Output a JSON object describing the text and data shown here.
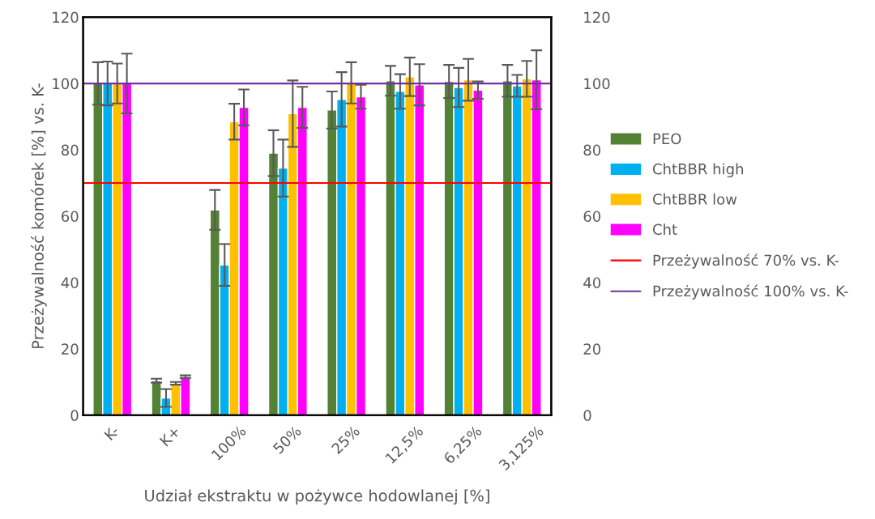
{
  "chart_data": {
    "type": "bar",
    "xlabel": "Udział ekstraktu w pożywce hodowlanej [%]",
    "ylabel": "Przeżywalność komórek [%] vs. K-",
    "categories": [
      "K-",
      "K+",
      "100%",
      "50%",
      "25%",
      "12,5%",
      "6,25%",
      "3,125%"
    ],
    "series": [
      {
        "name": "PEO",
        "color": "#548235",
        "values": [
          100,
          10.4,
          61.9,
          79,
          92,
          100.8,
          100.6,
          100.8
        ],
        "errors": [
          6.4,
          0.6,
          6,
          6.9,
          5.6,
          4.5,
          5,
          4.8
        ]
      },
      {
        "name": "ChtBBR high",
        "color": "#00b0f0",
        "values": [
          100,
          5.2,
          45.3,
          74.5,
          95.2,
          97.6,
          98.8,
          99.3
        ],
        "errors": [
          6.6,
          2.7,
          6.3,
          8.6,
          8.2,
          5.2,
          5.9,
          3.3
        ]
      },
      {
        "name": "ChtBBR low",
        "color": "#ffc000",
        "values": [
          100,
          9.6,
          88.5,
          90.9,
          100.2,
          102,
          101.1,
          101.4
        ],
        "errors": [
          6,
          0.4,
          5.4,
          10,
          6.2,
          5.8,
          6.3,
          5.4
        ]
      },
      {
        "name": "Cht",
        "color": "#ff00ff",
        "values": [
          100,
          11.6,
          92.8,
          92.8,
          96,
          99.6,
          98,
          101.1
        ],
        "errors": [
          9,
          0.4,
          5.4,
          6.2,
          3.6,
          6.2,
          2.6,
          8.9
        ]
      }
    ],
    "ref_lines": [
      {
        "axis": "y",
        "value": 70,
        "label": "Przeżywalność 70% vs. K-",
        "color": "#ff0000"
      },
      {
        "axis": "y",
        "value": 100,
        "label": "Przeżywalność 100% vs. K-",
        "color": "#7030a0"
      }
    ],
    "ylim": [
      0,
      120
    ],
    "yticks": [
      0,
      20,
      40,
      60,
      80,
      100,
      120
    ],
    "y2lim": [
      0,
      120
    ],
    "y2ticks": [
      0,
      20,
      40,
      60,
      80,
      100,
      120
    ],
    "grid": false,
    "legend": "right"
  }
}
